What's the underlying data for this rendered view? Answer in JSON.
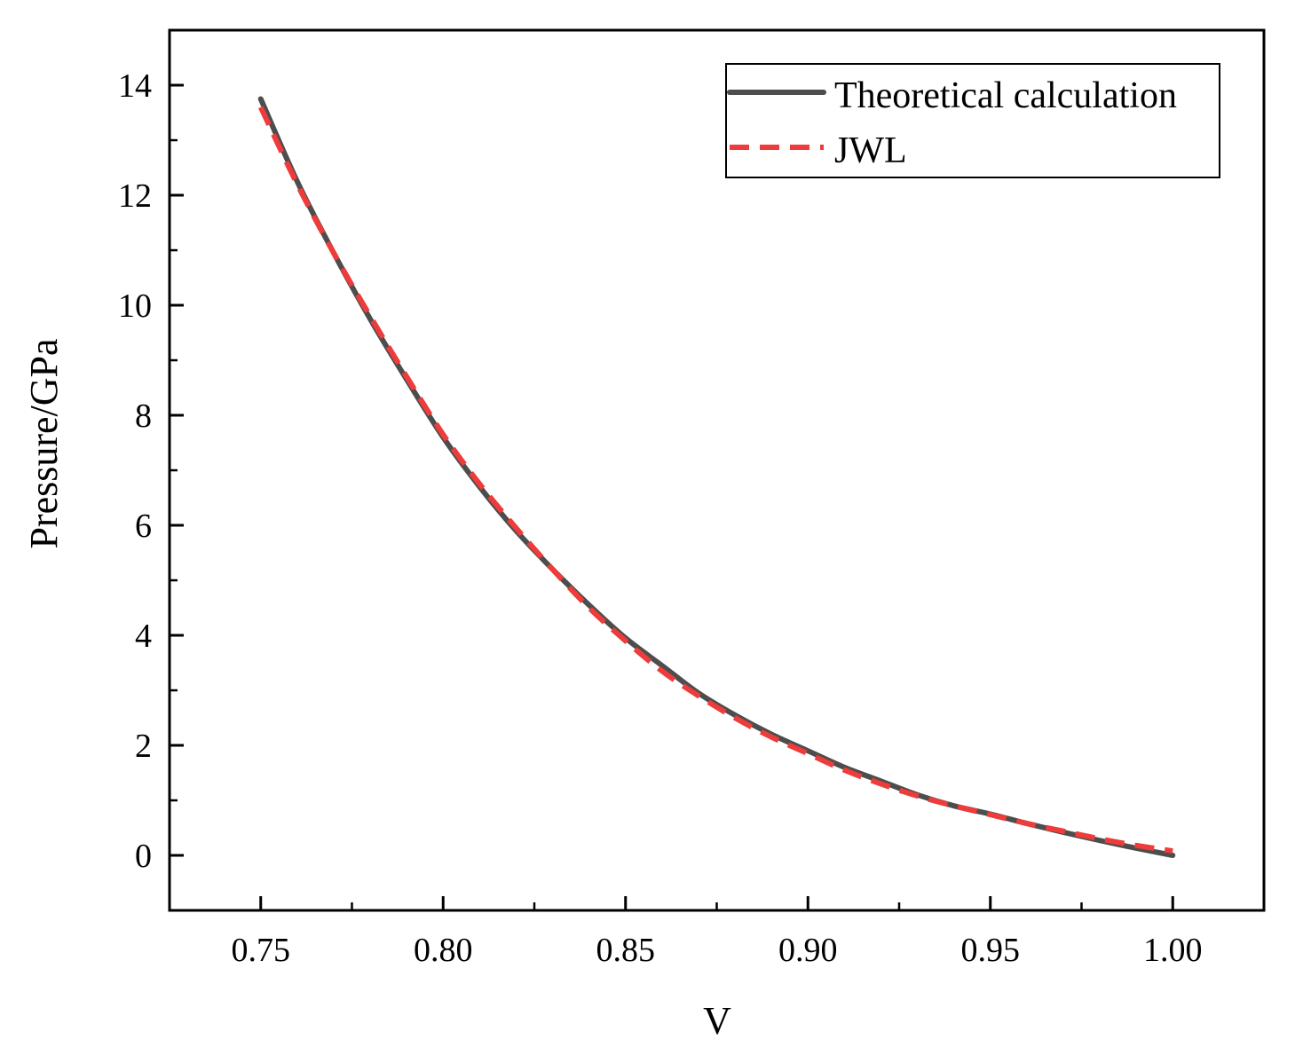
{
  "chart_data": {
    "type": "line",
    "title": "",
    "xlabel": "V",
    "ylabel": "Pressure/GPa",
    "xlim": [
      0.725,
      1.025
    ],
    "ylim": [
      -1,
      15
    ],
    "x_ticks": [
      0.75,
      0.8,
      0.85,
      0.9,
      0.95,
      1.0
    ],
    "x_tick_labels": [
      "0.75",
      "0.80",
      "0.85",
      "0.90",
      "0.95",
      "1.00"
    ],
    "y_ticks": [
      0,
      2,
      4,
      6,
      8,
      10,
      12,
      14
    ],
    "y_tick_labels": [
      "0",
      "2",
      "4",
      "6",
      "8",
      "10",
      "12",
      "14"
    ],
    "grid": false,
    "legend_position": "top-right",
    "series": [
      {
        "name": "Theoretical calculation",
        "color": "#4d4d4d",
        "style": "solid",
        "x": [
          0.75,
          0.76,
          0.77,
          0.78,
          0.79,
          0.8,
          0.81,
          0.82,
          0.83,
          0.84,
          0.85,
          0.86,
          0.87,
          0.88,
          0.89,
          0.9,
          0.91,
          0.92,
          0.93,
          0.94,
          0.95,
          0.96,
          0.97,
          0.98,
          0.99,
          1.0
        ],
        "y": [
          13.75,
          12.25,
          10.95,
          9.75,
          8.65,
          7.6,
          6.7,
          5.9,
          5.2,
          4.55,
          3.95,
          3.45,
          2.95,
          2.55,
          2.2,
          1.9,
          1.6,
          1.35,
          1.1,
          0.9,
          0.75,
          0.58,
          0.42,
          0.27,
          0.13,
          0.0
        ]
      },
      {
        "name": "JWL",
        "color": "#ee3b3b",
        "style": "dashed",
        "x": [
          0.75,
          0.76,
          0.77,
          0.78,
          0.79,
          0.8,
          0.81,
          0.82,
          0.83,
          0.84,
          0.85,
          0.86,
          0.87,
          0.88,
          0.89,
          0.9,
          0.91,
          0.92,
          0.93,
          0.94,
          0.95,
          0.96,
          0.97,
          0.98,
          0.99,
          1.0
        ],
        "y": [
          13.6,
          12.2,
          10.95,
          9.8,
          8.7,
          7.65,
          6.75,
          5.95,
          5.2,
          4.5,
          3.9,
          3.35,
          2.9,
          2.5,
          2.15,
          1.85,
          1.55,
          1.3,
          1.08,
          0.9,
          0.74,
          0.58,
          0.44,
          0.3,
          0.18,
          0.08
        ]
      }
    ]
  }
}
